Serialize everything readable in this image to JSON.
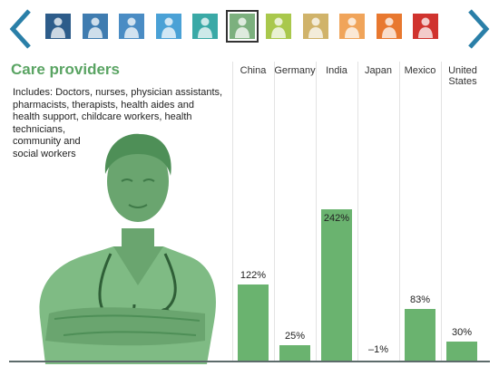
{
  "nav": {
    "prev_icon": "chevron-left-icon",
    "next_icon": "chevron-right-icon",
    "arrow_color": "#2a7fa8",
    "thumbnails": [
      {
        "icon": "navy-worker-icon",
        "color": "#2d5c8a"
      },
      {
        "icon": "blue-worker-icon",
        "color": "#3f7cb0"
      },
      {
        "icon": "blue-worker-icon",
        "color": "#4a8cc4"
      },
      {
        "icon": "light-blue-worker-icon",
        "color": "#4aa1d6"
      },
      {
        "icon": "teal-worker-icon",
        "color": "#3aa9a6"
      },
      {
        "icon": "green-care-provider-icon",
        "color": "#7cb07e",
        "selected": true
      },
      {
        "icon": "lime-worker-icon",
        "color": "#a9c84c"
      },
      {
        "icon": "tan-worker-icon",
        "color": "#d0b36a"
      },
      {
        "icon": "orange-worker-icon",
        "color": "#f0a45a"
      },
      {
        "icon": "dark-orange-worker-icon",
        "color": "#e8782f"
      },
      {
        "icon": "red-worker-icon",
        "color": "#d0332e"
      }
    ]
  },
  "panel": {
    "title": "Care providers",
    "title_color": "#5aa463",
    "description_lines": [
      "Includes: Doctors, nurses, physician assistants,",
      "pharmacists, therapists, health aides and",
      "health support, childcare workers, health",
      "technicians,",
      "community and",
      "social workers"
    ],
    "figure_icon": "care-provider-figure-icon"
  },
  "chart_data": {
    "type": "bar",
    "categories": [
      "China",
      "Germany",
      "India",
      "Japan",
      "Mexico",
      "United States"
    ],
    "category_lines": [
      [
        "China"
      ],
      [
        "Germany"
      ],
      [
        "India"
      ],
      [
        "Japan"
      ],
      [
        "Mexico"
      ],
      [
        "United",
        "States"
      ]
    ],
    "values": [
      122,
      25,
      242,
      -1,
      83,
      30
    ],
    "value_labels": [
      "122%",
      "25%",
      "242%",
      "–1%",
      "83%",
      "30%"
    ],
    "bar_color": "#6ab36f",
    "ylim": [
      -1,
      242
    ]
  }
}
